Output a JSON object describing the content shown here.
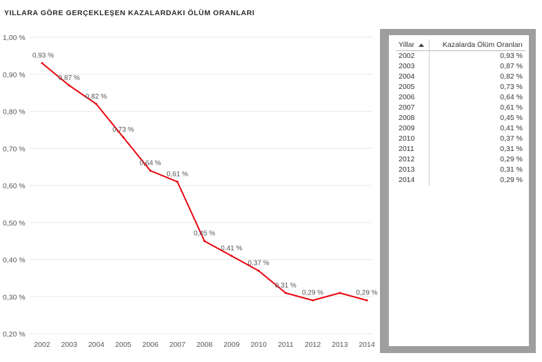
{
  "title": "YILLARA GÖRE GERÇEKLEŞEN KAZALARDAKI ÖLÜM ORANLARI",
  "chart_data": {
    "type": "line",
    "categories": [
      "2002",
      "2003",
      "2004",
      "2005",
      "2006",
      "2007",
      "2008",
      "2009",
      "2010",
      "2011",
      "2012",
      "2013",
      "2014"
    ],
    "series": [
      {
        "values": [
          0.93,
          0.87,
          0.82,
          0.73,
          0.64,
          0.61,
          0.45,
          0.41,
          0.37,
          0.31,
          0.29,
          0.31,
          0.29
        ],
        "labels": [
          "0,93 %",
          "0,87 %",
          "0,82 %",
          "0,73 %",
          "0,64 %",
          "0,61 %",
          "0,45 %",
          "0,41 %",
          "0,37 %",
          "0,31 %",
          "0,29 %",
          "",
          "0,29 %"
        ],
        "color": "#e8000b"
      }
    ],
    "yticks": [
      "1,00 %",
      "0,90 %",
      "0,80 %",
      "0,70 %",
      "0,60 %",
      "0,50 %",
      "0,40 %",
      "0,30 %",
      "0,20 %"
    ],
    "ylim": [
      0.2,
      1.0
    ],
    "grid": true,
    "xlabel": "",
    "ylabel": ""
  },
  "table": {
    "headers": {
      "year": "Yillar",
      "rate": "Kazalarda Ölüm Oranları"
    },
    "sort_icon": "sort-ascending-icon",
    "rows": [
      {
        "year": "2002",
        "rate": "0,93 %"
      },
      {
        "year": "2003",
        "rate": "0,87 %"
      },
      {
        "year": "2004",
        "rate": "0,82 %"
      },
      {
        "year": "2005",
        "rate": "0,73 %"
      },
      {
        "year": "2006",
        "rate": "0,64 %"
      },
      {
        "year": "2007",
        "rate": "0,61 %"
      },
      {
        "year": "2008",
        "rate": "0,45 %"
      },
      {
        "year": "2009",
        "rate": "0,41 %"
      },
      {
        "year": "2010",
        "rate": "0,37 %"
      },
      {
        "year": "2011",
        "rate": "0,31 %"
      },
      {
        "year": "2012",
        "rate": "0,29 %"
      },
      {
        "year": "2013",
        "rate": "0,31 %"
      },
      {
        "year": "2014",
        "rate": "0,29 %"
      }
    ]
  }
}
